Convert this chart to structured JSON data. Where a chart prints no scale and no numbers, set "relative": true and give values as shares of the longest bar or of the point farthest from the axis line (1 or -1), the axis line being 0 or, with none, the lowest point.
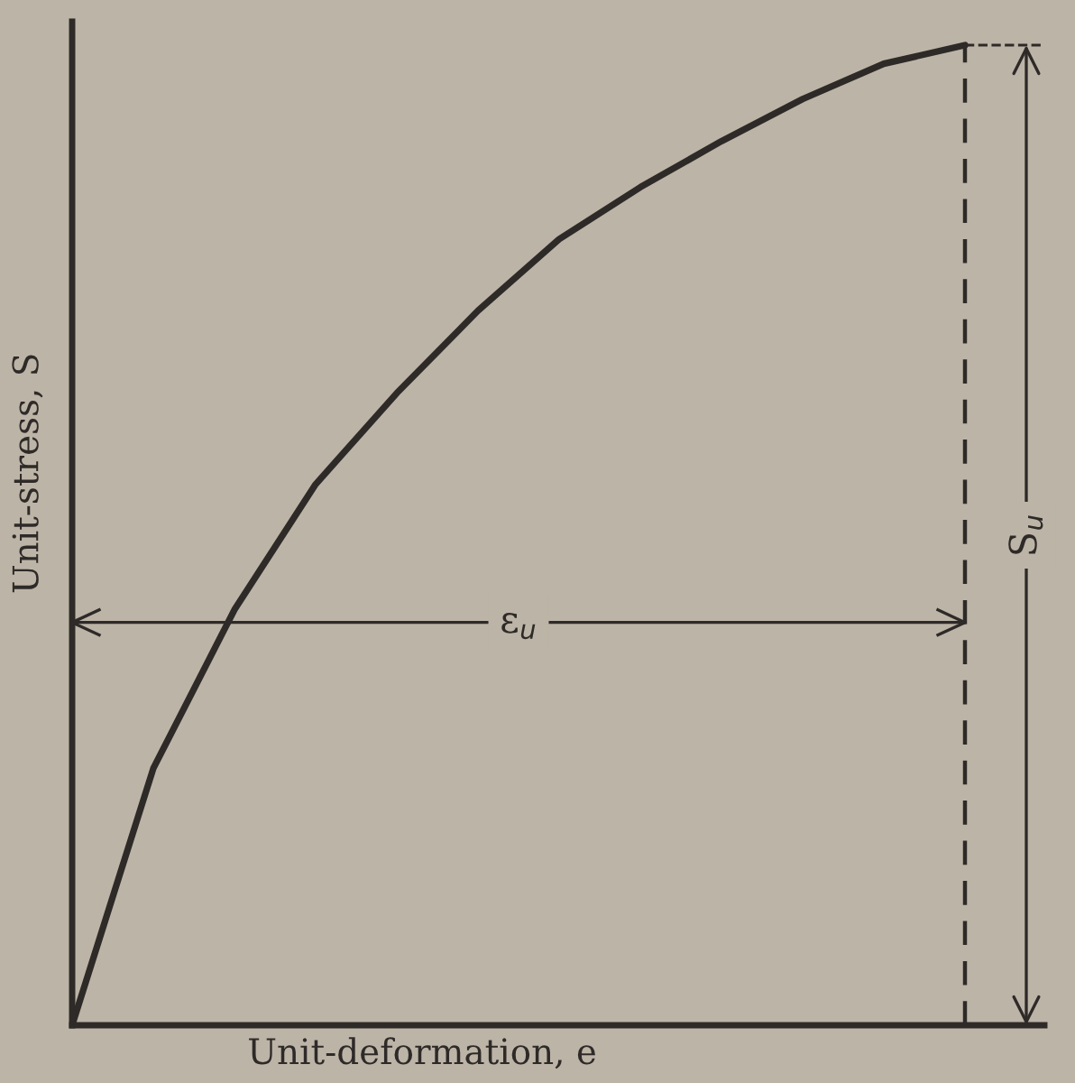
{
  "chart_data": {
    "type": "line",
    "relative": true,
    "xlabel": "Unit-deformation, e",
    "ylabel": "Unit-stress, S",
    "categories": [
      null,
      null,
      null,
      null,
      null,
      null,
      null,
      null,
      null,
      null,
      null,
      null
    ],
    "series": [
      {
        "color": "#2e2a28",
        "values": [
          0,
          0.262,
          0.424,
          0.552,
          0.645,
          0.729,
          0.802,
          0.855,
          0.902,
          0.945,
          0.981,
          1
        ]
      }
    ],
    "ref_lines": [
      {
        "axis": "y",
        "value": 0.411,
        "label": "ε$_{u}$",
        "line_style": "solid",
        "color": "#2e2a28"
      }
    ],
    "annotations": [
      "S$_{u}$"
    ],
    "marker": "none",
    "line_style": "solid"
  }
}
